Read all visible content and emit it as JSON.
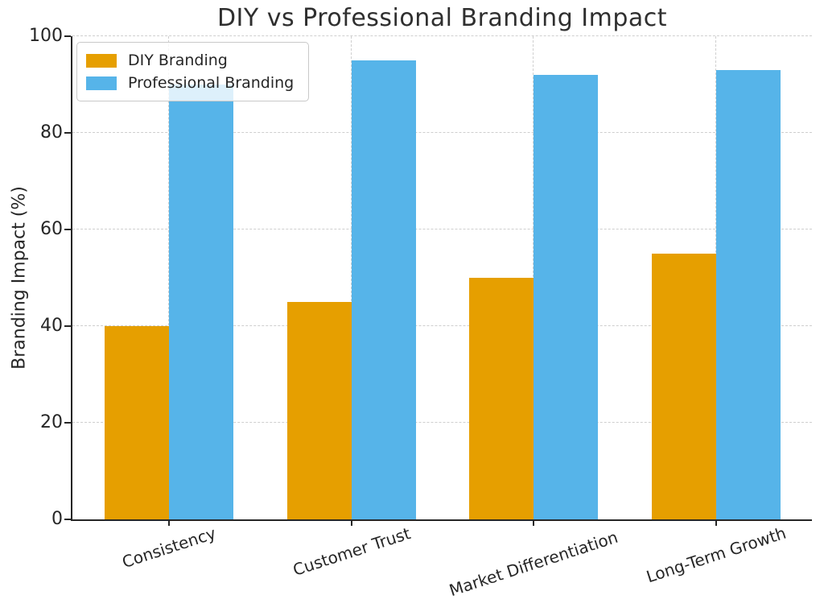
{
  "chart_data": {
    "type": "bar",
    "title": "DIY vs Professional Branding Impact",
    "xlabel": "",
    "ylabel": "Branding Impact (%)",
    "categories": [
      "Consistency",
      "Customer Trust",
      "Market Differentiation",
      "Long-Term Growth"
    ],
    "series": [
      {
        "name": "DIY Branding",
        "color": "#E69F00",
        "values": [
          40,
          45,
          50,
          55
        ]
      },
      {
        "name": "Professional Branding",
        "color": "#56B4E9",
        "values": [
          90,
          95,
          92,
          93
        ]
      }
    ],
    "ylim": [
      0,
      100
    ],
    "yticks": [
      0,
      20,
      40,
      60,
      80,
      100
    ],
    "grid": true,
    "grid_style": "dashed",
    "legend_position": "upper-left",
    "x_tick_rotation": -18
  },
  "colors": {
    "background": "#ffffff",
    "text": "#262626",
    "title": "#2f2f2f",
    "grid": "#cfcfcf",
    "spine": "#262626",
    "legend_border": "#c9c9c9"
  }
}
